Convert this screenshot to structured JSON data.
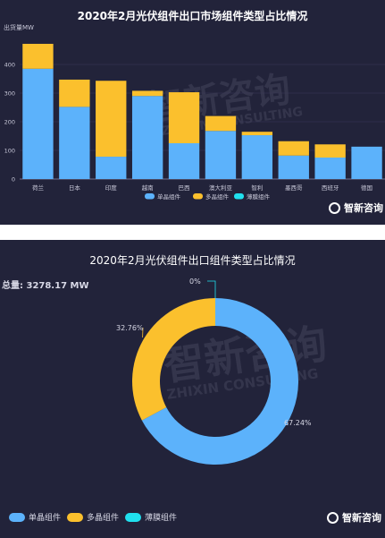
{
  "colors": {
    "mono": "#5cb2fb",
    "multi": "#fbc02d",
    "film": "#20e0ee",
    "bg": "#22233a",
    "axis": "#8a8aa8"
  },
  "watermark": {
    "cn": "智新咨询",
    "en": "ZHIXIN CONSULTING"
  },
  "logo": {
    "cn": "智新咨询"
  },
  "chart_data": [
    {
      "type": "bar",
      "title": "2020年2月光伏组件出口市场组件类型占比情况",
      "ylabel": "出货量MW",
      "ylim": [
        0,
        500
      ],
      "yticks": [
        "0",
        "100",
        "200",
        "300",
        "400"
      ],
      "categories": [
        "荷兰",
        "日本",
        "印度",
        "越南",
        "巴西",
        "澳大利亚",
        "智利",
        "墨西哥",
        "西班牙",
        "德国"
      ],
      "series": [
        {
          "name": "单晶组件",
          "values": [
            385,
            252,
            78,
            290,
            125,
            168,
            153,
            82,
            75,
            113
          ]
        },
        {
          "name": "多晶组件",
          "values": [
            87,
            95,
            265,
            18,
            178,
            52,
            12,
            50,
            46,
            0
          ]
        },
        {
          "name": "薄膜组件",
          "values": [
            0,
            0,
            0,
            0,
            0,
            0,
            0,
            0,
            0,
            0
          ]
        }
      ],
      "legend": "bottom-center"
    },
    {
      "type": "pie",
      "title": "2020年2月光伏组件出口组件类型占比情况",
      "total_text": "总量: 3278.17 MW",
      "slices": [
        {
          "name": "单晶组件",
          "value": 67.24,
          "label": "67.24%"
        },
        {
          "name": "多晶组件",
          "value": 32.76,
          "label": "32.76%"
        },
        {
          "name": "薄膜组件",
          "value": 0,
          "label": "0%"
        }
      ],
      "legend": "bottom-left"
    }
  ]
}
